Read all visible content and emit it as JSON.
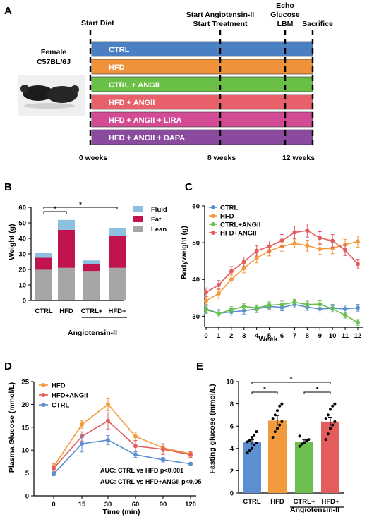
{
  "figure": {
    "panel_labels": [
      "A",
      "B",
      "C",
      "D",
      "E"
    ]
  },
  "panel_a": {
    "events": [
      {
        "label_lines": [
          "Start Diet"
        ]
      },
      {
        "label_lines": [
          "Start Angiotensin-II",
          "Start Treatment"
        ]
      },
      {
        "label_lines": [
          "Echo",
          "Glucose",
          "LBM"
        ]
      },
      {
        "label_lines": [
          "Sacrifice"
        ]
      }
    ],
    "mouse_label_lines": [
      "Female",
      "C57BL/6J"
    ],
    "groups": [
      {
        "label": "CTRL",
        "color": "#4a7fc1"
      },
      {
        "label": "HFD",
        "color": "#f0923a"
      },
      {
        "label": "CTRL + ANGII",
        "color": "#6abf47"
      },
      {
        "label": "HFD + ANGII",
        "color": "#e8606a"
      },
      {
        "label": "HFD + ANGII + LIRA",
        "color": "#d44b95"
      },
      {
        "label": "HFD + ANGII + DAPA",
        "color": "#8a4a9e"
      }
    ],
    "week_labels": [
      "0 weeks",
      "8 weeks",
      "12 weeks"
    ]
  },
  "chart_data": [
    {
      "panel": "B",
      "type": "bar",
      "ylabel": "Weight (g)",
      "ylim": [
        0,
        60
      ],
      "yticks": [
        0,
        10,
        20,
        30,
        40,
        50,
        60
      ],
      "categories": [
        "CTRL",
        "HFD",
        "CTRL+",
        "HFD+"
      ],
      "group_label": "Angiotensin-II",
      "series": [
        {
          "name": "Lean",
          "color": "#a6a6a6",
          "values": [
            19.8,
            21,
            19,
            21
          ]
        },
        {
          "name": "Fat",
          "color": "#c0134f",
          "values": [
            7.7,
            24.5,
            4.2,
            20.5
          ]
        },
        {
          "name": "Fluid",
          "color": "#8dbfe0",
          "values": [
            3.3,
            6.4,
            2.6,
            5.3
          ]
        }
      ],
      "legend_order": [
        "Fluid",
        "Fat",
        "Lean"
      ],
      "significance": [
        {
          "from": 0,
          "to": 1,
          "label": "*"
        },
        {
          "from": 0,
          "to": 3,
          "label": "*"
        }
      ]
    },
    {
      "panel": "C",
      "type": "line",
      "xlabel": "Week",
      "ylabel": "Bodyweight (g)",
      "xlim": [
        0,
        12
      ],
      "ylim": [
        27,
        60
      ],
      "yticks": [
        30,
        40,
        50,
        60
      ],
      "x": [
        0,
        1,
        2,
        3,
        4,
        5,
        6,
        7,
        8,
        9,
        10,
        11,
        12
      ],
      "series": [
        {
          "name": "CTRL",
          "color": "#5b8fcf",
          "values": [
            32,
            30.8,
            31.2,
            31.5,
            32,
            32.7,
            32.4,
            33.2,
            32.5,
            32,
            32.2,
            32,
            32.3
          ],
          "err": [
            1.2,
            1,
            0.9,
            0.9,
            1,
            0.9,
            0.9,
            0.9,
            0.9,
            0.9,
            1,
            1,
            0.9
          ]
        },
        {
          "name": "HFD",
          "color": "#f39a3c",
          "values": [
            34.2,
            36.2,
            40,
            43.1,
            45.8,
            47.8,
            49,
            49.8,
            49.2,
            48.3,
            48.5,
            49.5,
            50.3
          ],
          "err": [
            1.2,
            1.3,
            1.2,
            1.3,
            1.3,
            1.4,
            1.3,
            1.2,
            1.5,
            1.5,
            1.5,
            1.4,
            1.5
          ]
        },
        {
          "name": "CTRL+ANGII",
          "color": "#6bbf4c",
          "values": [
            31.8,
            30.7,
            31.8,
            32.7,
            32.3,
            33,
            33.2,
            33.8,
            33.2,
            33.3,
            32,
            30.3,
            28.3
          ],
          "err": [
            0.9,
            0.9,
            0.8,
            0.8,
            0.8,
            0.9,
            0.9,
            0.8,
            0.9,
            0.9,
            0.9,
            0.8,
            0.8
          ]
        },
        {
          "name": "HFD+ANGII",
          "color": "#e35d5d",
          "values": [
            36.5,
            38.5,
            42.2,
            44.8,
            47.8,
            49,
            50.6,
            52.8,
            53.3,
            51.3,
            50.5,
            48,
            44.2
          ],
          "err": [
            1.2,
            1.2,
            1.3,
            1.3,
            1.4,
            1.5,
            1.6,
            1.7,
            1.8,
            1.7,
            1.7,
            1.5,
            1.3
          ]
        }
      ]
    },
    {
      "panel": "D",
      "type": "line",
      "xlabel": "Time (min)",
      "ylabel": "Plasma Glucose (mmol/L)",
      "ylim": [
        0,
        25
      ],
      "yticks": [
        0,
        5,
        10,
        15,
        20,
        25
      ],
      "x": [
        0,
        15,
        30,
        60,
        90,
        120
      ],
      "series": [
        {
          "name": "HFD",
          "color": "#f39a3c",
          "values": [
            6.4,
            15.6,
            20,
            13,
            10.5,
            9.2
          ],
          "err": [
            0.6,
            0.8,
            1.4,
            0.9,
            0.8,
            0.6
          ]
        },
        {
          "name": "HFD+ANGII",
          "color": "#e35d5d",
          "values": [
            6,
            13,
            16.4,
            10.9,
            10.2,
            9
          ],
          "err": [
            0.6,
            1,
            1.8,
            1.2,
            1.2,
            0.6
          ]
        },
        {
          "name": "CTRL",
          "color": "#5b8fcf",
          "values": [
            4.8,
            11.4,
            12.2,
            9,
            7.9,
            7
          ],
          "err": [
            0.4,
            1.8,
            1,
            0.6,
            0.5,
            0.3
          ]
        }
      ],
      "annotations": [
        "AUC: CTRL vs  HFD p<0.001",
        "AUC: CTRL vs  HFD+ANGII p<0.05"
      ]
    },
    {
      "panel": "E",
      "type": "bar",
      "ylabel": "Fasting glucose (mmol/L)",
      "ylim": [
        0,
        10
      ],
      "yticks": [
        0,
        2,
        4,
        6,
        8,
        10
      ],
      "categories": [
        "CTRL",
        "HFD",
        "CTRL+",
        "HFD+"
      ],
      "group_label": "Angiotensin-II",
      "series": [
        {
          "colors": [
            "#5b8fcf",
            "#f39a3c",
            "#6bbf4c",
            "#e35d5d"
          ],
          "values": [
            4.55,
            6.5,
            4.6,
            6.4
          ],
          "err": [
            0.22,
            0.45,
            0.2,
            0.4
          ],
          "points": [
            [
              3.6,
              3.8,
              4.0,
              4.3,
              4.5,
              4.6,
              4.7,
              5.0,
              5.2,
              5.5
            ],
            [
              5.0,
              5.5,
              5.8,
              6.1,
              6.4,
              6.7,
              7.0,
              7.4,
              7.8,
              8.0
            ],
            [
              4.2,
              4.4,
              4.5,
              4.7,
              4.8,
              5.1
            ],
            [
              4.8,
              5.3,
              5.8,
              6.1,
              6.4,
              6.7,
              7.0,
              7.5,
              7.8,
              8.0
            ]
          ]
        }
      ],
      "significance": [
        {
          "from": 0,
          "to": 1,
          "label": "*"
        },
        {
          "from": 2,
          "to": 3,
          "label": "*"
        },
        {
          "from": 0,
          "to": 3,
          "label": "*"
        }
      ]
    }
  ]
}
